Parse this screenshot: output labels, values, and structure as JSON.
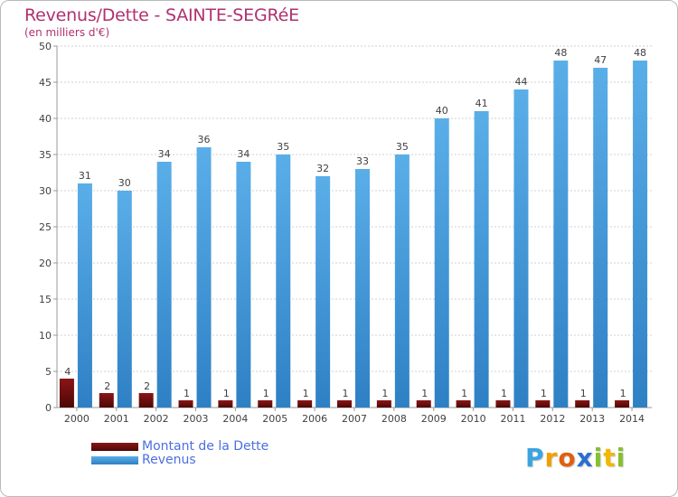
{
  "header": {
    "title": "Revenus/Dette - SAINTE-SEGRéE",
    "subtitle": "(en milliers d'€)"
  },
  "legend": {
    "items": [
      {
        "label": "Montant de la Dette",
        "color": "#6e0f0f"
      },
      {
        "label": "Revenus",
        "color": "#4fa3e0"
      }
    ]
  },
  "logo": {
    "parts": [
      "P",
      "r",
      "o",
      "x",
      "i",
      "t",
      "i"
    ]
  },
  "chart_data": {
    "type": "bar",
    "categories": [
      "2000",
      "2001",
      "2002",
      "2003",
      "2004",
      "2005",
      "2006",
      "2007",
      "2008",
      "2009",
      "2010",
      "2011",
      "2012",
      "2013",
      "2014"
    ],
    "series": [
      {
        "name": "Montant de la Dette",
        "color": "#6e0f0f",
        "values": [
          4,
          2,
          2,
          1,
          1,
          1,
          1,
          1,
          1,
          1,
          1,
          1,
          1,
          1,
          1
        ]
      },
      {
        "name": "Revenus",
        "color": "#4fa3e0",
        "values": [
          31,
          30,
          34,
          36,
          34,
          35,
          32,
          33,
          35,
          40,
          41,
          44,
          48,
          47,
          48
        ]
      }
    ],
    "title": "Revenus/Dette - SAINTE-SEGRéE",
    "ylabel": "(en milliers d'€)",
    "ylim": [
      0,
      50
    ],
    "yticks": [
      0,
      5,
      10,
      15,
      20,
      25,
      30,
      35,
      40,
      45,
      50
    ],
    "grid": true,
    "legend_position": "bottom-left"
  }
}
